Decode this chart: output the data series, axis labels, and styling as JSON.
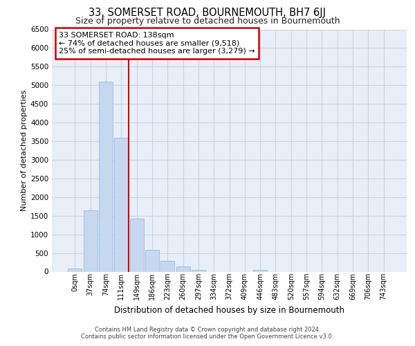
{
  "title": "33, SOMERSET ROAD, BOURNEMOUTH, BH7 6JJ",
  "subtitle": "Size of property relative to detached houses in Bournemouth",
  "xlabel": "Distribution of detached houses by size in Bournemouth",
  "ylabel": "Number of detached properties",
  "footer_line1": "Contains HM Land Registry data © Crown copyright and database right 2024.",
  "footer_line2": "Contains public sector information licensed under the Open Government Licence v3.0.",
  "annotation_line1": "33 SOMERSET ROAD: 138sqm",
  "annotation_line2": "← 74% of detached houses are smaller (9,518)",
  "annotation_line3": "25% of semi-detached houses are larger (3,279) →",
  "bar_color": "#c5d8ef",
  "bar_edge_color": "#8ab4d8",
  "grid_color": "#c8d4e4",
  "background_color": "#e8eef8",
  "red_color": "#cc0000",
  "categories": [
    "0sqm",
    "37sqm",
    "74sqm",
    "111sqm",
    "149sqm",
    "186sqm",
    "223sqm",
    "260sqm",
    "297sqm",
    "334sqm",
    "372sqm",
    "409sqm",
    "446sqm",
    "483sqm",
    "520sqm",
    "557sqm",
    "594sqm",
    "632sqm",
    "669sqm",
    "706sqm",
    "743sqm"
  ],
  "values": [
    75,
    1640,
    5090,
    3600,
    1430,
    580,
    295,
    145,
    55,
    0,
    0,
    0,
    50,
    0,
    0,
    0,
    0,
    0,
    0,
    0,
    0
  ],
  "ylim": [
    0,
    6500
  ],
  "yticks": [
    0,
    500,
    1000,
    1500,
    2000,
    2500,
    3000,
    3500,
    4000,
    4500,
    5000,
    5500,
    6000,
    6500
  ],
  "red_line_x": 3.5,
  "fig_bg": "#ffffff"
}
